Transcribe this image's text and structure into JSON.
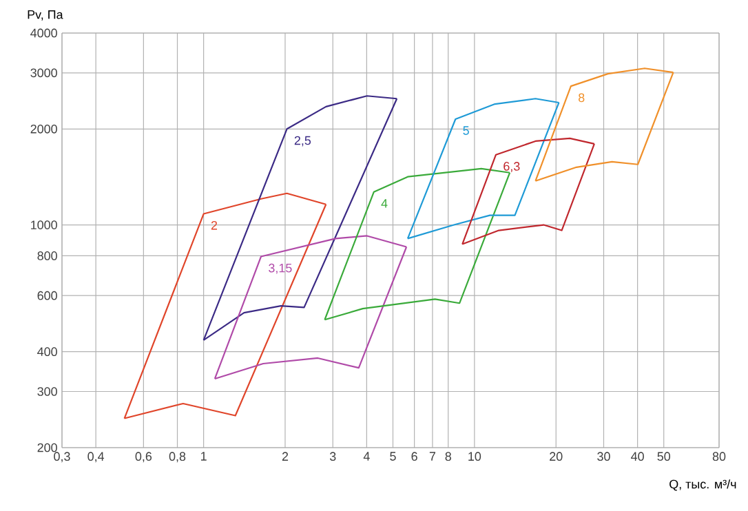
{
  "chart_data": {
    "type": "line",
    "xlabel": "Q, тыс. м³/ч",
    "ylabel": "Pv, Па",
    "log": "xy",
    "grid": true,
    "marker": "none",
    "xlim": [
      0.3,
      80
    ],
    "ylim": [
      200,
      4000
    ],
    "xticks": [
      {
        "value": 0.3,
        "label": "0,3"
      },
      {
        "value": 0.4,
        "label": "0,4"
      },
      {
        "value": 0.6,
        "label": "0,6"
      },
      {
        "value": 0.8,
        "label": "0,8"
      },
      1,
      2,
      3,
      4,
      5,
      6,
      7,
      8,
      10,
      20,
      30,
      40,
      50,
      80
    ],
    "yticks": [
      200,
      300,
      400,
      600,
      800,
      1000,
      2000,
      3000,
      4000
    ],
    "series": [
      {
        "name": "2",
        "color": "#e0452a",
        "x": [
          0.51,
          1.0,
          1.63,
          2.03,
          2.83
        ],
        "values": [
          247,
          1083,
          1207,
          1256,
          1160
        ]
      },
      {
        "color": "#e0452a",
        "x": [
          0.51,
          0.84,
          1.31,
          2.83
        ],
        "values": [
          247,
          275,
          252,
          1160
        ]
      },
      {
        "name": "2,5",
        "color": "#3b2a85",
        "x": [
          1.0,
          2.03,
          2.83,
          4.01,
          5.17
        ],
        "values": [
          435,
          2000,
          2350,
          2540,
          2490
        ]
      },
      {
        "color": "#3b2a85",
        "x": [
          1.0,
          1.41,
          1.93,
          2.35,
          5.17
        ],
        "values": [
          435,
          530,
          557,
          551,
          2490
        ]
      },
      {
        "name": "3,15",
        "color": "#b04aa8",
        "x": [
          1.1,
          1.63,
          3.07,
          4.01,
          5.61
        ],
        "values": [
          329,
          796,
          906,
          924,
          853
        ]
      },
      {
        "color": "#b04aa8",
        "x": [
          1.1,
          1.66,
          2.64,
          3.74,
          5.61
        ],
        "values": [
          329,
          367,
          382,
          356,
          853
        ]
      },
      {
        "name": "4",
        "color": "#3aaa3a",
        "x": [
          2.8,
          4.25,
          5.67,
          10.6,
          13.5
        ],
        "values": [
          504,
          1268,
          1416,
          1502,
          1458
        ]
      },
      {
        "color": "#3aaa3a",
        "x": [
          2.8,
          3.87,
          7.15,
          8.81,
          13.5
        ],
        "values": [
          504,
          546,
          585,
          568,
          1458
        ]
      },
      {
        "name": "5",
        "color": "#1e9ad6",
        "x": [
          5.67,
          8.51,
          11.9,
          16.8,
          20.5
        ],
        "values": [
          906,
          2147,
          2395,
          2490,
          2420
        ]
      },
      {
        "color": "#1e9ad6",
        "x": [
          5.67,
          8.4,
          11.4,
          14.1,
          20.5
        ],
        "values": [
          906,
          1000,
          1072,
          1072,
          2420
        ]
      },
      {
        "name": "6,3",
        "color": "#c0272d",
        "x": [
          9.02,
          12.0,
          16.8,
          22.5,
          27.7
        ],
        "values": [
          870,
          1660,
          1832,
          1869,
          1796
        ]
      },
      {
        "color": "#c0272d",
        "x": [
          9.02,
          12.3,
          18.0,
          21.0,
          27.7
        ],
        "values": [
          870,
          961,
          1000,
          961,
          1796
        ]
      },
      {
        "name": "8",
        "color": "#f0902a",
        "x": [
          16.8,
          22.7,
          31.1,
          42.5,
          54.2
        ],
        "values": [
          1374,
          2725,
          2980,
          3100,
          3010
        ]
      },
      {
        "color": "#f0902a",
        "x": [
          16.8,
          23.8,
          32.2,
          40.1,
          54.2
        ],
        "values": [
          1374,
          1517,
          1578,
          1548,
          3010
        ]
      }
    ]
  }
}
